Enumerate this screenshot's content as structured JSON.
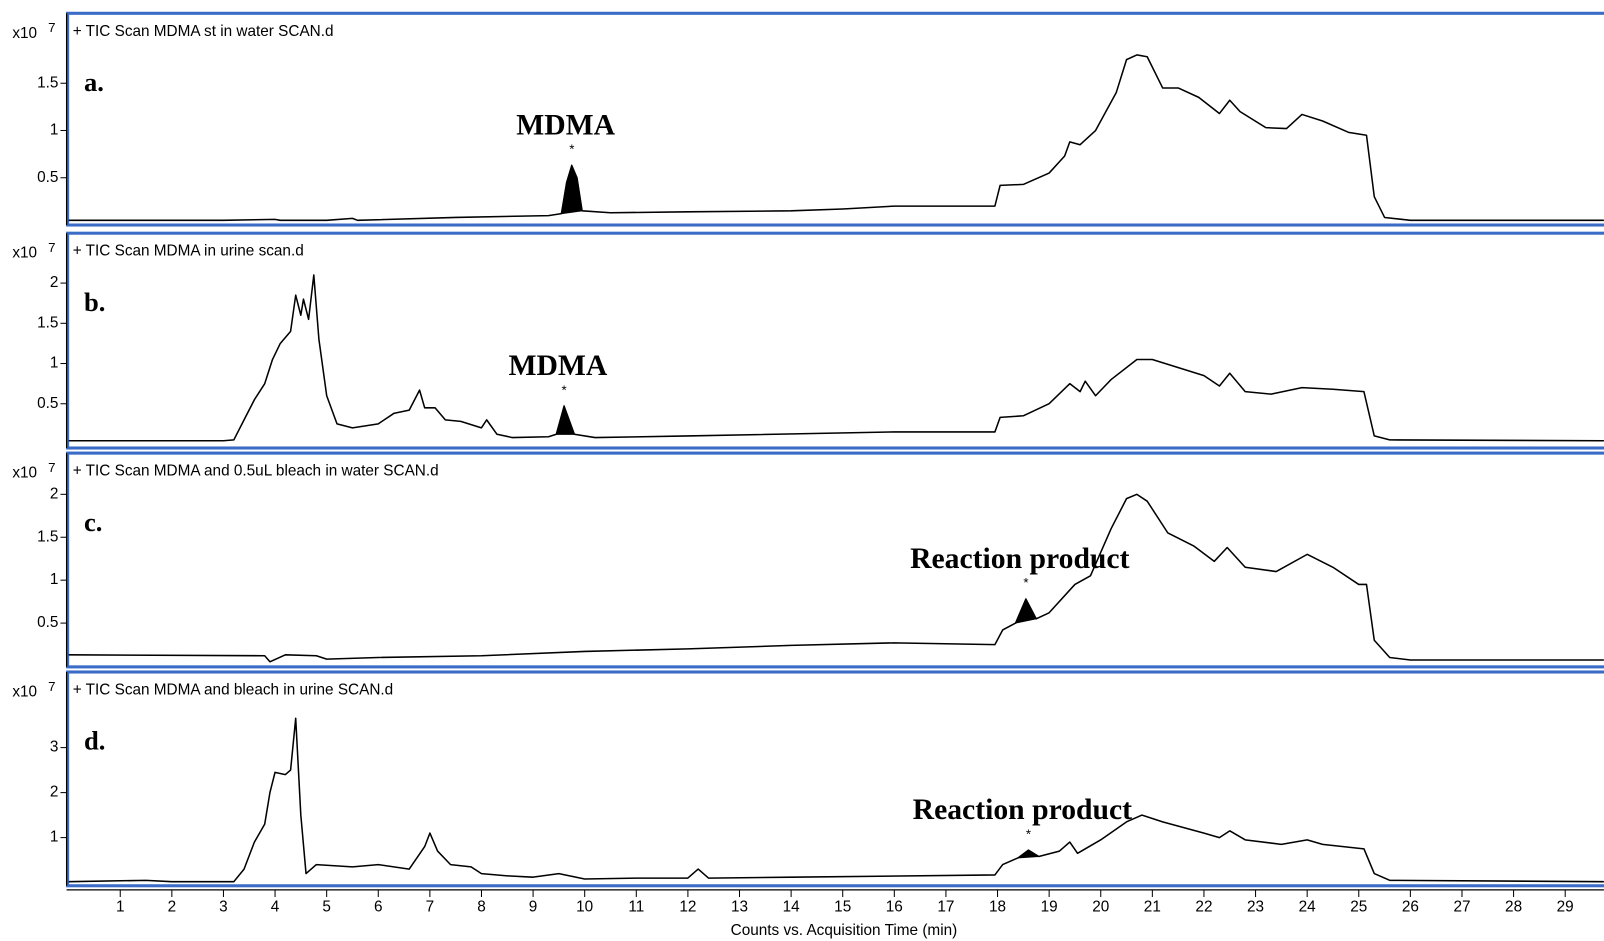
{
  "chart_data": [
    {
      "type": "line",
      "title": "+ TIC Scan MDMA st in water SCAN.d",
      "panel_label": "a.",
      "y_multiplier": "x10",
      "y_exponent": "7",
      "color": "#000000",
      "xlim": [
        0,
        29.75
      ],
      "ylim": [
        0,
        2.24
      ],
      "yticks": [
        0.5,
        1,
        1.5
      ],
      "x": [
        0,
        3,
        4,
        4.1,
        5,
        5.5,
        5.6,
        7.5,
        9.3,
        9.55,
        9.65,
        9.75,
        9.85,
        9.95,
        10.5,
        12,
        14,
        15,
        16,
        17.5,
        17.95,
        18.05,
        18.5,
        19,
        19.3,
        19.4,
        19.6,
        19.9,
        20.3,
        20.5,
        20.7,
        20.9,
        21.2,
        21.5,
        21.9,
        22.3,
        22.5,
        22.7,
        23.2,
        23.6,
        23.9,
        24.3,
        24.8,
        25.15,
        25.3,
        25.5,
        26,
        29.75
      ],
      "values": [
        0.05,
        0.05,
        0.06,
        0.05,
        0.05,
        0.07,
        0.05,
        0.08,
        0.1,
        0.12,
        0.45,
        0.63,
        0.5,
        0.15,
        0.13,
        0.14,
        0.15,
        0.17,
        0.2,
        0.2,
        0.2,
        0.42,
        0.43,
        0.55,
        0.73,
        0.88,
        0.85,
        1.0,
        1.4,
        1.75,
        1.8,
        1.78,
        1.45,
        1.45,
        1.35,
        1.18,
        1.32,
        1.2,
        1.03,
        1.02,
        1.17,
        1.1,
        0.98,
        0.95,
        0.3,
        0.08,
        0.05,
        0.05
      ],
      "shaded_range": [
        9.55,
        9.95
      ],
      "annotation": "MDMA",
      "peak_marker": "*"
    },
    {
      "type": "line",
      "title": "+ TIC Scan MDMA in urine scan.d",
      "panel_label": "b.",
      "y_multiplier": "x10",
      "y_exponent": "7",
      "color": "#000000",
      "xlim": [
        0,
        29.75
      ],
      "ylim": [
        -0.05,
        2.62
      ],
      "yticks": [
        0.5,
        1,
        1.5,
        2
      ],
      "x": [
        0,
        3,
        3.2,
        3.4,
        3.6,
        3.8,
        3.95,
        4.1,
        4.3,
        4.4,
        4.5,
        4.55,
        4.65,
        4.75,
        4.85,
        5.0,
        5.2,
        5.5,
        6,
        6.3,
        6.6,
        6.8,
        6.9,
        7.1,
        7.3,
        7.6,
        8.0,
        8.1,
        8.3,
        8.6,
        9.3,
        9.45,
        9.6,
        9.8,
        10.2,
        12,
        16,
        17.95,
        18.05,
        18.5,
        19,
        19.4,
        19.6,
        19.7,
        19.9,
        20.2,
        20.7,
        21,
        22,
        22.3,
        22.5,
        22.8,
        23.3,
        23.9,
        24.5,
        25.1,
        25.3,
        25.6,
        29.75
      ],
      "values": [
        0.04,
        0.04,
        0.05,
        0.3,
        0.55,
        0.75,
        1.05,
        1.25,
        1.4,
        1.85,
        1.6,
        1.8,
        1.55,
        2.1,
        1.3,
        0.6,
        0.25,
        0.2,
        0.25,
        0.38,
        0.42,
        0.67,
        0.45,
        0.45,
        0.3,
        0.28,
        0.2,
        0.3,
        0.12,
        0.08,
        0.09,
        0.12,
        0.47,
        0.12,
        0.08,
        0.1,
        0.15,
        0.15,
        0.33,
        0.35,
        0.5,
        0.75,
        0.65,
        0.78,
        0.6,
        0.8,
        1.05,
        1.05,
        0.85,
        0.72,
        0.88,
        0.65,
        0.62,
        0.7,
        0.68,
        0.65,
        0.1,
        0.05,
        0.04
      ],
      "shaded_range": [
        9.45,
        9.8
      ],
      "annotation": "MDMA",
      "peak_marker": "*"
    },
    {
      "type": "line",
      "title": "+ TIC Scan MDMA and 0.5uL bleach in water SCAN.d",
      "panel_label": "c.",
      "y_multiplier": "x10",
      "y_exponent": "7",
      "color": "#000000",
      "xlim": [
        0,
        29.75
      ],
      "ylim": [
        -0.01,
        2.48
      ],
      "yticks": [
        0.5,
        1,
        1.5,
        2
      ],
      "x": [
        0,
        3.8,
        3.9,
        4.2,
        4.8,
        5.0,
        6,
        8,
        10,
        12,
        14,
        16,
        17.95,
        18.1,
        18.35,
        18.55,
        18.75,
        19,
        19.5,
        19.8,
        20.2,
        20.5,
        20.7,
        20.9,
        21.3,
        21.8,
        22.2,
        22.45,
        22.8,
        23.4,
        24.0,
        24.5,
        25.0,
        25.15,
        25.3,
        25.6,
        26,
        29.75
      ],
      "values": [
        0.13,
        0.12,
        0.05,
        0.13,
        0.12,
        0.08,
        0.1,
        0.12,
        0.17,
        0.2,
        0.24,
        0.27,
        0.25,
        0.42,
        0.5,
        0.78,
        0.55,
        0.62,
        0.95,
        1.05,
        1.6,
        1.95,
        2.0,
        1.92,
        1.55,
        1.4,
        1.22,
        1.38,
        1.15,
        1.1,
        1.3,
        1.15,
        0.95,
        0.95,
        0.3,
        0.1,
        0.07,
        0.07
      ],
      "shaded_range": [
        18.35,
        18.75
      ],
      "annotation": "Reaction product",
      "peak_marker": "*"
    },
    {
      "type": "line",
      "title": "+ TIC Scan MDMA and bleach in urine SCAN.d",
      "panel_label": "d.",
      "y_multiplier": "x10",
      "y_exponent": "7",
      "color": "#000000",
      "xlim": [
        0,
        29.75
      ],
      "ylim": [
        -0.07,
        4.68
      ],
      "yticks": [
        1,
        2,
        3
      ],
      "xlabel": "Counts vs. Acquisition Time (min)",
      "xticks": [
        1,
        2,
        3,
        4,
        5,
        6,
        7,
        8,
        9,
        10,
        11,
        12,
        13,
        14,
        15,
        16,
        17,
        18,
        19,
        20,
        21,
        22,
        23,
        24,
        25,
        26,
        27,
        28,
        29
      ],
      "x": [
        0,
        1.5,
        2,
        3.2,
        3.4,
        3.6,
        3.8,
        3.9,
        4.0,
        4.2,
        4.3,
        4.4,
        4.5,
        4.6,
        4.8,
        5.5,
        6,
        6.6,
        6.9,
        7.0,
        7.15,
        7.4,
        7.8,
        8.0,
        8.5,
        9,
        9.5,
        10,
        11,
        12,
        12.2,
        12.4,
        14,
        17.95,
        18.1,
        18.4,
        18.6,
        18.8,
        19.2,
        19.4,
        19.55,
        20,
        20.5,
        20.8,
        21.2,
        22,
        22.3,
        22.5,
        22.8,
        23.5,
        24,
        24.3,
        25.1,
        25.3,
        25.6,
        29.75
      ],
      "values": [
        0.02,
        0.05,
        0.02,
        0.02,
        0.3,
        0.9,
        1.3,
        2.0,
        2.45,
        2.4,
        2.5,
        3.65,
        1.5,
        0.2,
        0.4,
        0.35,
        0.4,
        0.3,
        0.8,
        1.1,
        0.7,
        0.4,
        0.35,
        0.2,
        0.15,
        0.12,
        0.2,
        0.08,
        0.1,
        0.1,
        0.3,
        0.1,
        0.12,
        0.17,
        0.4,
        0.55,
        0.72,
        0.58,
        0.7,
        0.9,
        0.65,
        0.95,
        1.35,
        1.5,
        1.35,
        1.1,
        1.0,
        1.15,
        0.95,
        0.85,
        0.95,
        0.85,
        0.75,
        0.2,
        0.05,
        0.02
      ],
      "shaded_range": [
        18.4,
        18.8
      ],
      "annotation": "Reaction product",
      "peak_marker": "*"
    }
  ]
}
